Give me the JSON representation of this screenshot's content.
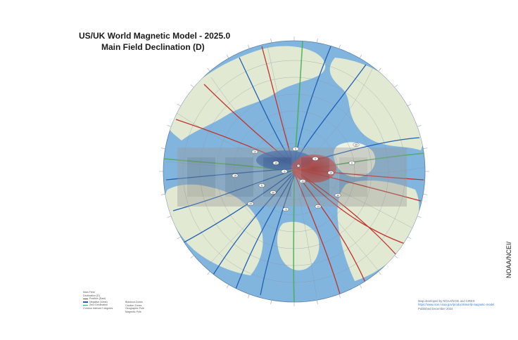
{
  "title": {
    "line1": "US/UK World Magnetic Model - 2025.0",
    "line2": "Main Field Declination (D)"
  },
  "map": {
    "projection": "north-polar-stereographic",
    "colors": {
      "ocean": "#7fb3dd",
      "land": "#dfe8cf",
      "positive_contour": "#c0322d",
      "negative_contour": "#1f5fb5",
      "zero_contour": "#3fa94a",
      "neutral_contour": "#8a93a3",
      "watermark": "#8a8a8a"
    },
    "contour_labels": [
      "-5",
      "-10",
      "-20",
      "0",
      "5",
      "10",
      "20",
      "30"
    ]
  },
  "legend": {
    "items": [
      "Main Field",
      "Declination (D)",
      "Positive (East)",
      "Negative (West)",
      "Zero Declination",
      "Contour interval 2 degrees",
      "Blackout Zones",
      "Caution Zones",
      "Geographic Pole",
      "Magnetic Pole"
    ]
  },
  "credits": {
    "line1": "Map developed by NOAA/NCEI and CIRES",
    "line2": "https://www.ncei.noaa.gov/products/world-magnetic-model",
    "line3": "Published December 2024"
  },
  "side_label": "NOAA/NCEI/"
}
